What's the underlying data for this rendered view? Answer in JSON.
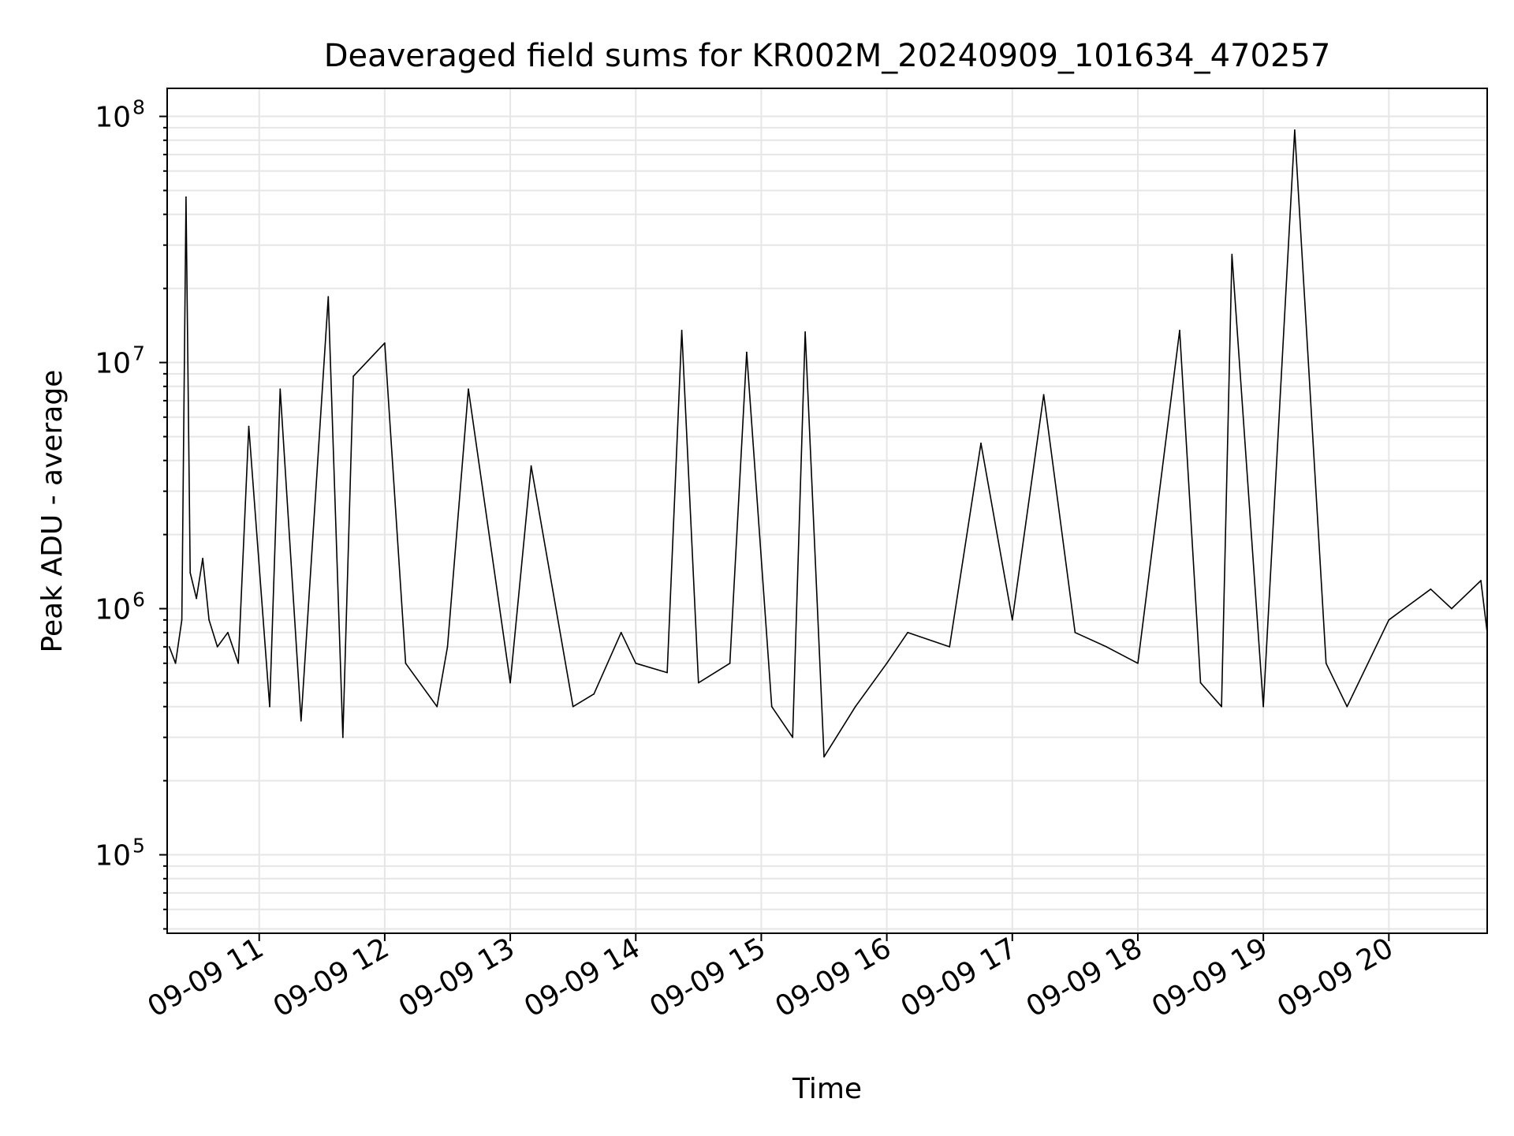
{
  "chart_data": {
    "type": "line",
    "title": "Deaveraged field sums for KR002M_20240909_101634_470257",
    "xlabel": "Time",
    "ylabel": "Peak ADU - average",
    "yscale": "log",
    "ylim": [
      48000,
      130000000
    ],
    "xlim": [
      "2024-09-09 10:16",
      "2024-09-09 20:47"
    ],
    "grid": true,
    "line_color": "#000000",
    "x_ticks": [
      "09-09 11",
      "09-09 12",
      "09-09 13",
      "09-09 14",
      "09-09 15",
      "09-09 16",
      "09-09 17",
      "09-09 18",
      "09-09 19",
      "09-09 20"
    ],
    "x_tick_values": [
      "2024-09-09 11:00",
      "2024-09-09 12:00",
      "2024-09-09 13:00",
      "2024-09-09 14:00",
      "2024-09-09 15:00",
      "2024-09-09 16:00",
      "2024-09-09 17:00",
      "2024-09-09 18:00",
      "2024-09-09 19:00",
      "2024-09-09 20:00"
    ],
    "y_ticks": [
      {
        "value": 100000,
        "base": "10",
        "exp": "5"
      },
      {
        "value": 1000000,
        "base": "10",
        "exp": "6"
      },
      {
        "value": 10000000,
        "base": "10",
        "exp": "7"
      },
      {
        "value": 100000000,
        "base": "10",
        "exp": "8"
      }
    ],
    "series": [
      {
        "x": [
          "2024-09-09 10:17",
          "2024-09-09 10:20",
          "2024-09-09 10:23",
          "2024-09-09 10:25",
          "2024-09-09 10:27",
          "2024-09-09 10:30",
          "2024-09-09 10:33",
          "2024-09-09 10:36",
          "2024-09-09 10:40",
          "2024-09-09 10:45",
          "2024-09-09 10:50",
          "2024-09-09 10:55",
          "2024-09-09 11:05",
          "2024-09-09 11:10",
          "2024-09-09 11:20",
          "2024-09-09 11:33",
          "2024-09-09 11:40",
          "2024-09-09 11:45",
          "2024-09-09 12:00",
          "2024-09-09 12:10",
          "2024-09-09 12:25",
          "2024-09-09 12:30",
          "2024-09-09 12:40",
          "2024-09-09 13:00",
          "2024-09-09 13:10",
          "2024-09-09 13:30",
          "2024-09-09 13:40",
          "2024-09-09 13:53",
          "2024-09-09 14:00",
          "2024-09-09 14:15",
          "2024-09-09 14:22",
          "2024-09-09 14:30",
          "2024-09-09 14:45",
          "2024-09-09 14:53",
          "2024-09-09 15:05",
          "2024-09-09 15:15",
          "2024-09-09 15:21",
          "2024-09-09 15:30",
          "2024-09-09 15:45",
          "2024-09-09 16:00",
          "2024-09-09 16:10",
          "2024-09-09 16:30",
          "2024-09-09 16:45",
          "2024-09-09 17:00",
          "2024-09-09 17:15",
          "2024-09-09 17:30",
          "2024-09-09 17:45",
          "2024-09-09 18:00",
          "2024-09-09 18:20",
          "2024-09-09 18:30",
          "2024-09-09 18:40",
          "2024-09-09 18:45",
          "2024-09-09 19:00",
          "2024-09-09 19:15",
          "2024-09-09 19:30",
          "2024-09-09 19:40",
          "2024-09-09 20:00",
          "2024-09-09 20:20",
          "2024-09-09 20:30",
          "2024-09-09 20:44",
          "2024-09-09 20:47"
        ],
        "y": [
          700000,
          600000,
          900000,
          47000000,
          1400000,
          1100000,
          1600000,
          900000,
          700000,
          800000,
          600000,
          5500000,
          400000,
          7800000,
          350000,
          18500000,
          300000,
          8800000,
          12000000,
          600000,
          400000,
          700000,
          7800000,
          500000,
          3800000,
          400000,
          450000,
          800000,
          600000,
          550000,
          13500000,
          500000,
          600000,
          11000000,
          400000,
          300000,
          13300000,
          250000,
          400000,
          600000,
          800000,
          700000,
          4700000,
          900000,
          7400000,
          800000,
          700000,
          600000,
          13500000,
          500000,
          400000,
          27500000,
          400000,
          88000000,
          600000,
          400000,
          900000,
          1200000,
          1000000,
          1300000,
          800000
        ]
      }
    ]
  }
}
